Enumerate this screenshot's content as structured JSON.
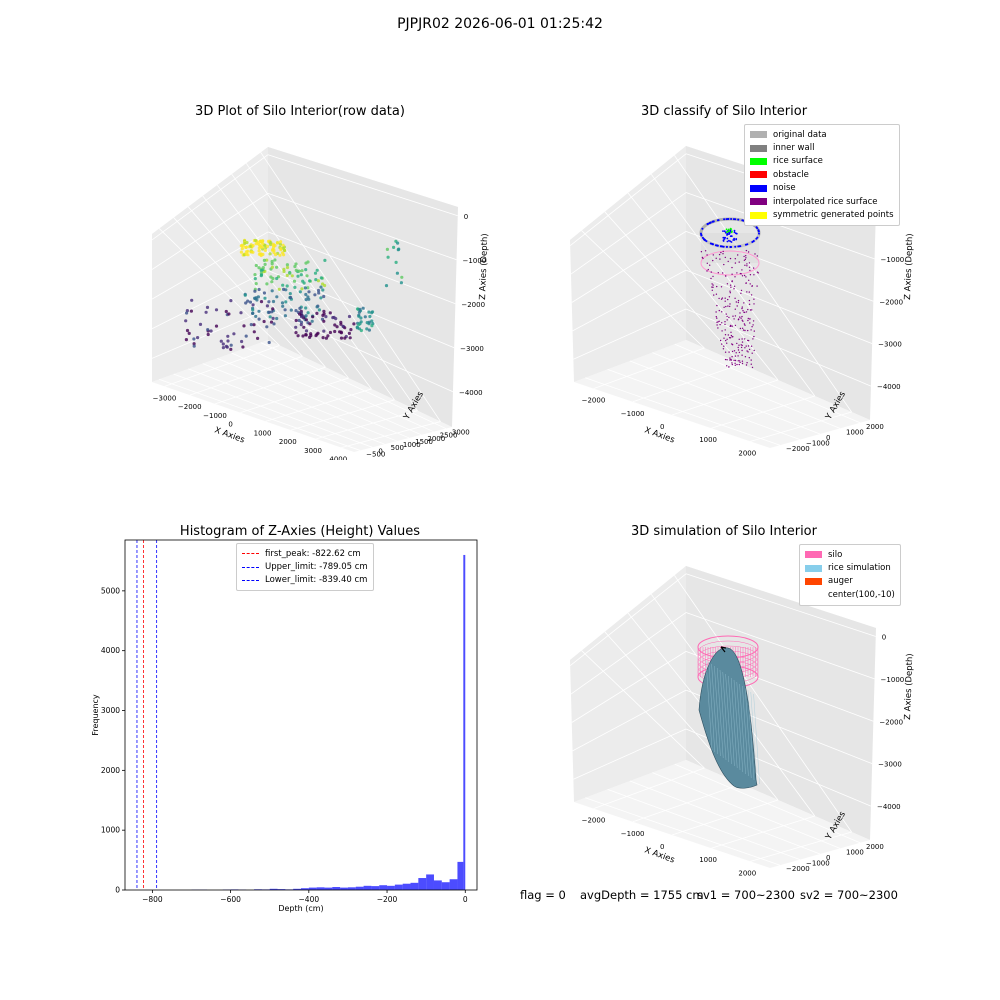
{
  "suptitle": "PJPJR02 2026-06-01 01:25:42",
  "footer": {
    "flag": "flag = 0",
    "avg_depth": "avgDepth = 1755 cm",
    "sv1": "sv1 = 700~2300",
    "sv2": "sv2 = 700~2300"
  },
  "chart_data": [
    {
      "type": "scatter",
      "title": "3D Plot of Silo Interior(row data)",
      "xlabel": "X Axies",
      "ylabel": "Y Axies",
      "zlabel": "Z Axies (Depth)",
      "x_ticks": [
        "−3000",
        "−2000",
        "−1000",
        "0",
        "1000",
        "2000",
        "3000",
        "4000"
      ],
      "y_ticks": [
        "−500",
        "0",
        "500",
        "1000",
        "1500",
        "2000",
        "2500",
        "3000"
      ],
      "z_ticks": [
        "0",
        "−1000",
        "−2000",
        "−3000",
        "−4000"
      ],
      "colormap": "viridis",
      "grid": true
    },
    {
      "type": "scatter",
      "title": "3D classify of Silo Interior",
      "xlabel": "X Axies",
      "ylabel": "Y Axies",
      "zlabel": "Z Axies (Depth)",
      "x_ticks": [
        "−2000",
        "−1000",
        "0",
        "1000",
        "2000"
      ],
      "y_ticks": [
        "−2000",
        "−1000",
        "0",
        "1000",
        "2000"
      ],
      "z_ticks": [
        "0",
        "−1000",
        "−2000",
        "−3000",
        "−4000"
      ],
      "legend_position": "top-right",
      "legend": [
        {
          "label": "original data",
          "color": "#b0b0b0"
        },
        {
          "label": "inner wall",
          "color": "#808080"
        },
        {
          "label": "rice surface",
          "color": "#00ff00"
        },
        {
          "label": "obstacle",
          "color": "#ff0000"
        },
        {
          "label": "noise",
          "color": "#0000ff"
        },
        {
          "label": "interpolated rice surface",
          "color": "#800080"
        },
        {
          "label": "symmetric generated points",
          "color": "#ffff00"
        }
      ],
      "grid": true
    },
    {
      "type": "bar",
      "title": "Histogram of Z-Axies (Height) Values",
      "xlabel": "Depth (cm)",
      "ylabel": "Frequency",
      "xlim": [
        -870,
        30
      ],
      "ylim": [
        0,
        5850
      ],
      "x_ticks": [
        -800,
        -600,
        -400,
        -200,
        0
      ],
      "x_tick_labels": [
        "−800",
        "−600",
        "−400",
        "−200",
        "0"
      ],
      "y_ticks": [
        0,
        1000,
        2000,
        3000,
        4000,
        5000
      ],
      "y_tick_labels": [
        "0",
        "1000",
        "2000",
        "3000",
        "4000",
        "5000"
      ],
      "bar_color": "#0000ff",
      "bins": [
        {
          "start": -700,
          "end": -680,
          "value": 5
        },
        {
          "start": -680,
          "end": -660,
          "value": 5
        },
        {
          "start": -620,
          "end": -600,
          "value": 8
        },
        {
          "start": -600,
          "end": -580,
          "value": 10
        },
        {
          "start": -580,
          "end": -560,
          "value": 6
        },
        {
          "start": -540,
          "end": -520,
          "value": 12
        },
        {
          "start": -520,
          "end": -500,
          "value": 10
        },
        {
          "start": -500,
          "end": -480,
          "value": 20
        },
        {
          "start": -480,
          "end": -460,
          "value": 15
        },
        {
          "start": -460,
          "end": -440,
          "value": 10
        },
        {
          "start": -440,
          "end": -420,
          "value": 20
        },
        {
          "start": -420,
          "end": -400,
          "value": 30
        },
        {
          "start": -400,
          "end": -380,
          "value": 40
        },
        {
          "start": -380,
          "end": -360,
          "value": 45
        },
        {
          "start": -360,
          "end": -340,
          "value": 40
        },
        {
          "start": -340,
          "end": -320,
          "value": 50
        },
        {
          "start": -320,
          "end": -300,
          "value": 40
        },
        {
          "start": -300,
          "end": -280,
          "value": 45
        },
        {
          "start": -280,
          "end": -260,
          "value": 55
        },
        {
          "start": -260,
          "end": -240,
          "value": 70
        },
        {
          "start": -240,
          "end": -220,
          "value": 65
        },
        {
          "start": -220,
          "end": -200,
          "value": 80
        },
        {
          "start": -200,
          "end": -180,
          "value": 70
        },
        {
          "start": -180,
          "end": -160,
          "value": 90
        },
        {
          "start": -160,
          "end": -140,
          "value": 105
        },
        {
          "start": -140,
          "end": -120,
          "value": 120
        },
        {
          "start": -120,
          "end": -100,
          "value": 200
        },
        {
          "start": -100,
          "end": -80,
          "value": 260
        },
        {
          "start": -80,
          "end": -60,
          "value": 160
        },
        {
          "start": -60,
          "end": -40,
          "value": 130
        },
        {
          "start": -40,
          "end": -20,
          "value": 180
        },
        {
          "start": -20,
          "end": -5,
          "value": 470
        },
        {
          "start": -5,
          "end": 0,
          "value": 5600
        }
      ],
      "vlines": [
        {
          "label": "first_peak: -822.62 cm",
          "value": -822.62,
          "color": "#ff0000"
        },
        {
          "label": "Upper_limit: -789.05 cm",
          "value": -789.05,
          "color": "#0000ff"
        },
        {
          "label": "Lower_limit: -839.40 cm",
          "value": -839.4,
          "color": "#0000ff"
        }
      ],
      "legend_position": "top-center"
    },
    {
      "type": "area",
      "title": "3D simulation of Silo Interior",
      "xlabel": "X Axies",
      "ylabel": "Y Axies",
      "zlabel": "Z Axies (Depth)",
      "x_ticks": [
        "−2000",
        "−1000",
        "0",
        "1000",
        "2000"
      ],
      "y_ticks": [
        "−2000",
        "−1000",
        "0",
        "1000",
        "2000"
      ],
      "z_ticks": [
        "0",
        "−1000",
        "−2000",
        "−3000",
        "−4000"
      ],
      "legend_position": "top-right",
      "legend": [
        {
          "label": "silo",
          "color": "#ff69b4"
        },
        {
          "label": "rice simulation",
          "color": "#87ceeb"
        },
        {
          "label": "auger",
          "color": "#ff4500"
        },
        {
          "label": "center(100,-10)",
          "color": ""
        }
      ],
      "grid": true
    }
  ]
}
